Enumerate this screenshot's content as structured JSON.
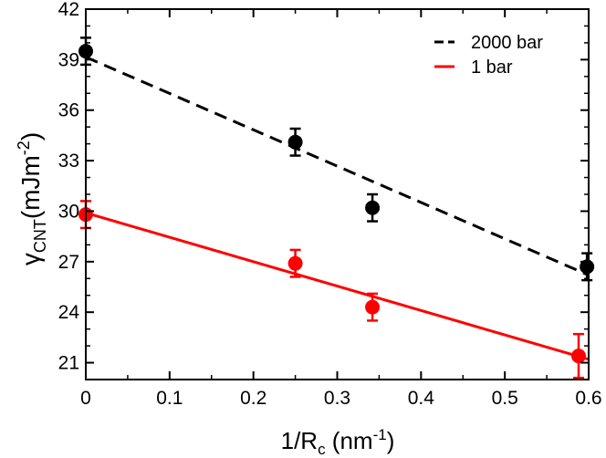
{
  "chart_data": {
    "type": "scatter",
    "title": "",
    "xlabel": {
      "main": "1/R",
      "sub": "c",
      "unit_open": " (nm",
      "sup": "-1",
      "unit_close": ")"
    },
    "ylabel": {
      "main": "γ",
      "sub": "CNT",
      "unit_open": "(mJm",
      "sup": "-2",
      "unit_close": ")"
    },
    "xlim": [
      0,
      0.6
    ],
    "ylim": [
      20,
      42
    ],
    "xticks": [
      0,
      0.1,
      0.2,
      0.3,
      0.4,
      0.5,
      0.6
    ],
    "xtick_labels": [
      "0",
      "0.1",
      "0.2",
      "0.3",
      "0.4",
      "0.5",
      "0.6"
    ],
    "yticks": [
      21,
      24,
      27,
      30,
      33,
      36,
      39,
      42
    ],
    "ytick_labels": [
      "21",
      "24",
      "27",
      "30",
      "33",
      "36",
      "39",
      "42"
    ],
    "legend_position": "top-right",
    "series": [
      {
        "name": "2000 bar",
        "color": "#000000",
        "line_style": "dashed",
        "points": [
          {
            "x": 0.0,
            "y": 39.5,
            "err": 0.8
          },
          {
            "x": 0.25,
            "y": 34.1,
            "err": 0.8
          },
          {
            "x": 0.342,
            "y": 30.2,
            "err": 0.8
          },
          {
            "x": 0.598,
            "y": 26.7,
            "err": 0.8
          }
        ],
        "fit": {
          "x": [
            0.0,
            0.6
          ],
          "y": [
            39.15,
            26.2
          ]
        }
      },
      {
        "name": "1 bar",
        "color": "#ff0000",
        "line_style": "solid",
        "points": [
          {
            "x": 0.0,
            "y": 29.8,
            "err": 0.8
          },
          {
            "x": 0.25,
            "y": 26.9,
            "err": 0.8
          },
          {
            "x": 0.342,
            "y": 24.3,
            "err": 0.8
          },
          {
            "x": 0.588,
            "y": 21.4,
            "err": 1.3
          }
        ],
        "fit": {
          "x": [
            0.0,
            0.6
          ],
          "y": [
            29.9,
            21.2
          ]
        }
      }
    ]
  }
}
